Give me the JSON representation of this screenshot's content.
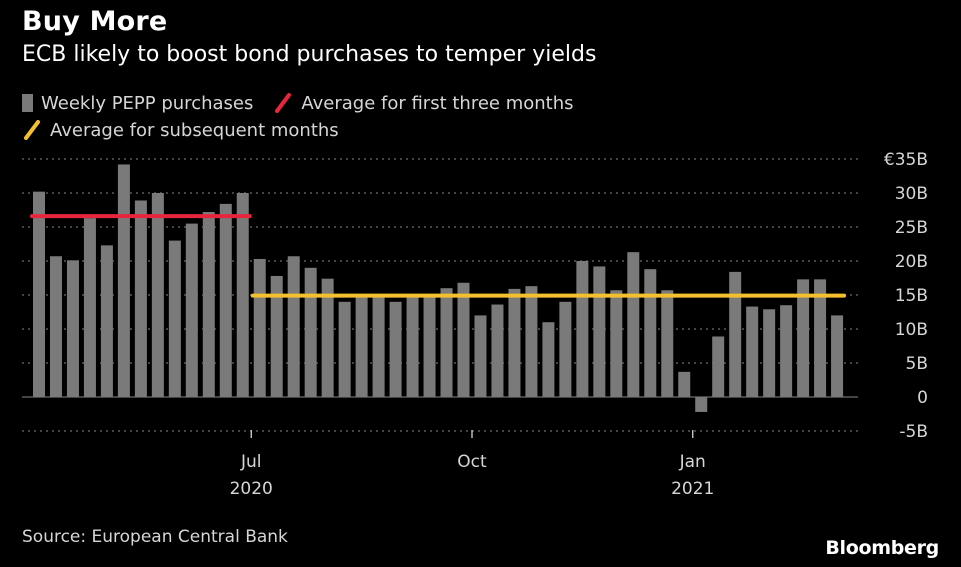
{
  "title": "Buy More",
  "subtitle": "ECB likely to boost bond purchases to temper yields",
  "source": "Source: European Central Bank",
  "brand": "Bloomberg",
  "colors": {
    "background": "#000000",
    "bars": "#7a7a7a",
    "first_average": "#e8253d",
    "subsequent_average": "#f5c02e",
    "grid": "#6e6e6e",
    "text": "#d6d6d6"
  },
  "chart_data": {
    "type": "bar",
    "title": "Buy More",
    "subtitle": "ECB likely to boost bond purchases to temper yields",
    "y_unit_prefix": "€",
    "ylim": [
      -5,
      35
    ],
    "y_ticks": [
      {
        "value": 35,
        "label": "€35B"
      },
      {
        "value": 30,
        "label": "30B"
      },
      {
        "value": 25,
        "label": "25B"
      },
      {
        "value": 20,
        "label": "20B"
      },
      {
        "value": 15,
        "label": "15B"
      },
      {
        "value": 10,
        "label": "10B"
      },
      {
        "value": 5,
        "label": "5B"
      },
      {
        "value": 0,
        "label": "0"
      },
      {
        "value": -5,
        "label": "-5B"
      }
    ],
    "grid": "horizontal-dotted",
    "legend_position": "top-left",
    "x_ticks": [
      {
        "label": "Jul",
        "year": "2020",
        "after_week_index": 12
      },
      {
        "label": "Oct",
        "year": "",
        "after_week_index": 25
      },
      {
        "label": "Jan",
        "year": "2021",
        "after_week_index": 38
      }
    ],
    "series": [
      {
        "name": "Weekly PEPP purchases",
        "type": "bar",
        "unit": "EUR billion",
        "values": [
          30.2,
          20.7,
          20.1,
          26.3,
          22.3,
          34.2,
          28.9,
          30.0,
          23.0,
          25.5,
          27.2,
          28.4,
          30.0,
          20.3,
          17.8,
          20.7,
          19.0,
          17.4,
          14.0,
          14.8,
          14.7,
          14.0,
          14.8,
          14.8,
          16.0,
          16.8,
          12.0,
          13.6,
          15.9,
          16.3,
          11.0,
          14.0,
          20.0,
          19.2,
          15.7,
          21.3,
          18.8,
          15.7,
          3.7,
          -2.2,
          8.9,
          18.4,
          13.3,
          12.9,
          13.5,
          17.3,
          17.3,
          12.0
        ]
      },
      {
        "name": "Average for first three months",
        "type": "hline",
        "value": 26.6,
        "from_index": 0,
        "to_index": 12
      },
      {
        "name": "Average for subsequent months",
        "type": "hline",
        "value": 14.9,
        "from_index": 13,
        "to_index": 47
      }
    ]
  }
}
